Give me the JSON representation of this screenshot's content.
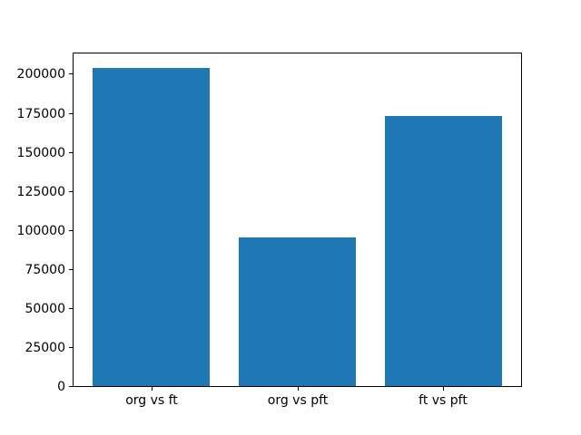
{
  "figure": {
    "background_color": "#ffffff",
    "axis_color": "#000000",
    "bar_color": "#1f77b4"
  },
  "chart_data": {
    "type": "bar",
    "categories": [
      "org vs ft",
      "org vs pft",
      "ft vs pft"
    ],
    "values": [
      204000,
      95000,
      173000
    ],
    "title": "",
    "xlabel": "",
    "ylabel": "",
    "ylim": [
      0,
      214200
    ],
    "yticks": [
      0,
      25000,
      50000,
      75000,
      100000,
      125000,
      150000,
      175000,
      200000
    ],
    "bar_rel_width": 0.8,
    "grid": false,
    "legend": null
  }
}
